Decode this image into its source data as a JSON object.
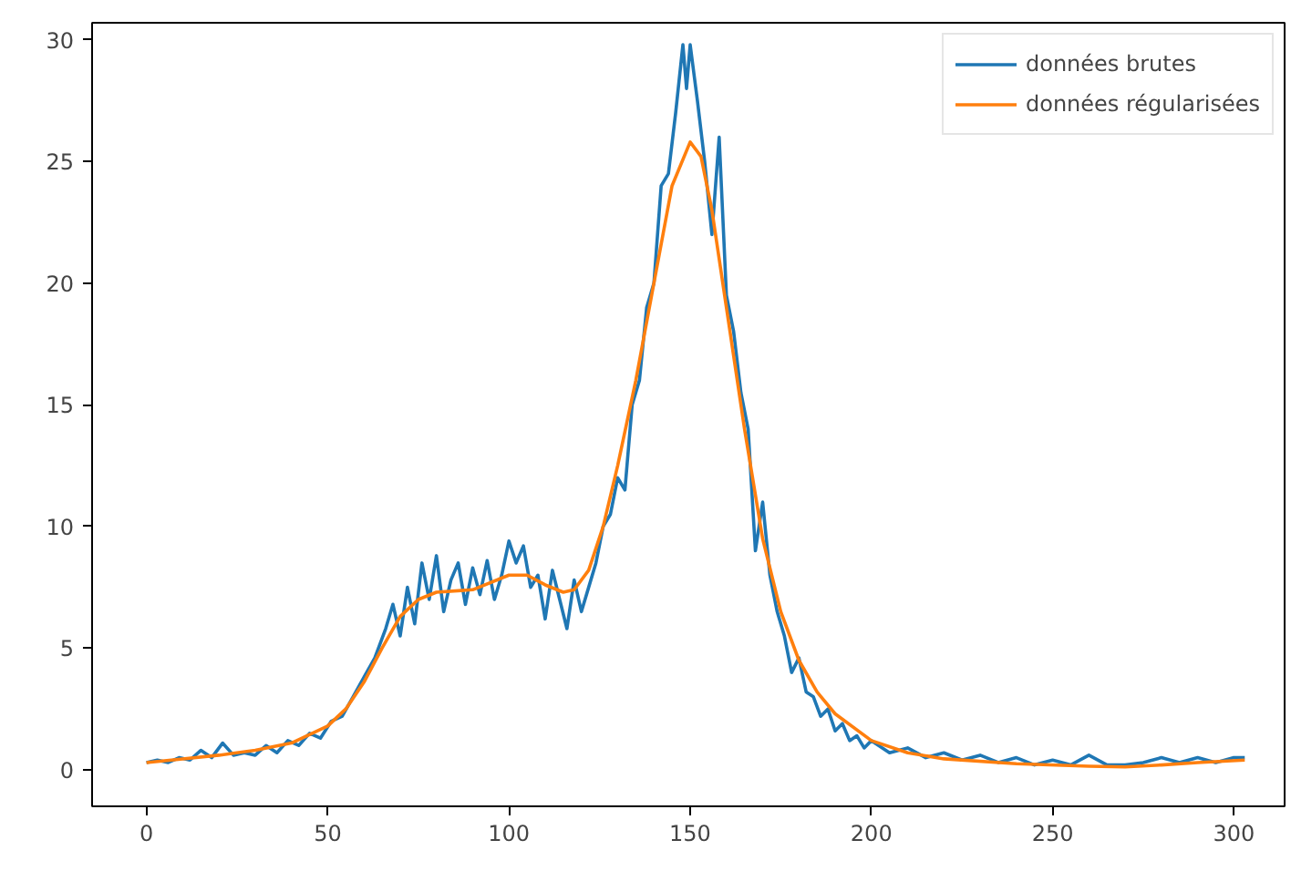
{
  "chart_data": {
    "type": "line",
    "xlim": [
      -15,
      314
    ],
    "ylim": [
      -1.5,
      30.7
    ],
    "xticks": [
      0,
      50,
      100,
      150,
      200,
      250,
      300
    ],
    "yticks": [
      0,
      5,
      10,
      15,
      20,
      25,
      30
    ],
    "grid": false,
    "legend": "top right",
    "series": [
      {
        "name": "données brutes",
        "color": "#1f77b4",
        "x": [
          0,
          3,
          6,
          9,
          12,
          15,
          18,
          21,
          24,
          27,
          30,
          33,
          36,
          39,
          42,
          45,
          48,
          51,
          54,
          57,
          60,
          63,
          66,
          68,
          70,
          72,
          74,
          76,
          78,
          80,
          82,
          84,
          86,
          88,
          90,
          92,
          94,
          96,
          98,
          100,
          102,
          104,
          106,
          108,
          110,
          112,
          114,
          116,
          118,
          120,
          122,
          124,
          126,
          128,
          130,
          132,
          134,
          136,
          138,
          140,
          142,
          144,
          146,
          148,
          149,
          150,
          152,
          154,
          156,
          158,
          160,
          162,
          164,
          166,
          168,
          170,
          172,
          174,
          176,
          178,
          180,
          182,
          184,
          186,
          188,
          190,
          192,
          194,
          196,
          198,
          200,
          205,
          210,
          215,
          220,
          225,
          230,
          235,
          240,
          245,
          250,
          255,
          260,
          265,
          270,
          275,
          280,
          285,
          290,
          295,
          300,
          303
        ],
        "values": [
          0.3,
          0.4,
          0.3,
          0.5,
          0.4,
          0.8,
          0.5,
          1.1,
          0.6,
          0.7,
          0.6,
          1.0,
          0.7,
          1.2,
          1.0,
          1.5,
          1.3,
          2.0,
          2.2,
          3.0,
          3.8,
          4.6,
          5.8,
          6.8,
          5.5,
          7.5,
          6.0,
          8.5,
          7.0,
          8.8,
          6.5,
          7.8,
          8.5,
          6.8,
          8.3,
          7.2,
          8.6,
          7.0,
          8.0,
          9.4,
          8.5,
          9.2,
          7.5,
          8.0,
          6.2,
          8.2,
          7.0,
          5.8,
          7.8,
          6.5,
          7.5,
          8.5,
          10.0,
          10.5,
          12.0,
          11.5,
          15.0,
          16.0,
          19.0,
          20.0,
          24.0,
          24.5,
          27.0,
          29.8,
          28.0,
          29.8,
          27.5,
          25.0,
          22.0,
          26.0,
          19.5,
          18.0,
          15.5,
          14.0,
          9.0,
          11.0,
          8.0,
          6.5,
          5.5,
          4.0,
          4.6,
          3.2,
          3.0,
          2.2,
          2.5,
          1.6,
          1.9,
          1.2,
          1.4,
          0.9,
          1.2,
          0.7,
          0.9,
          0.5,
          0.7,
          0.4,
          0.6,
          0.3,
          0.5,
          0.2,
          0.4,
          0.2,
          0.6,
          0.2,
          0.2,
          0.3,
          0.5,
          0.3,
          0.5,
          0.3,
          0.5,
          0.5
        ]
      },
      {
        "name": "données régularisées",
        "color": "#ff7f0e",
        "x": [
          0,
          10,
          20,
          30,
          40,
          50,
          55,
          60,
          65,
          70,
          75,
          80,
          90,
          100,
          105,
          110,
          115,
          118,
          122,
          126,
          130,
          135,
          140,
          145,
          150,
          153,
          156,
          160,
          165,
          170,
          175,
          180,
          185,
          190,
          200,
          210,
          220,
          240,
          260,
          270,
          280,
          290,
          303
        ],
        "values": [
          0.3,
          0.45,
          0.6,
          0.8,
          1.1,
          1.8,
          2.5,
          3.6,
          5.0,
          6.3,
          7.0,
          7.3,
          7.4,
          8.0,
          8.0,
          7.6,
          7.3,
          7.4,
          8.2,
          10,
          12.5,
          16,
          20,
          24,
          25.8,
          25.2,
          23,
          19,
          14,
          9.5,
          6.5,
          4.5,
          3.2,
          2.3,
          1.2,
          0.7,
          0.45,
          0.25,
          0.15,
          0.12,
          0.2,
          0.3,
          0.4
        ]
      }
    ]
  }
}
